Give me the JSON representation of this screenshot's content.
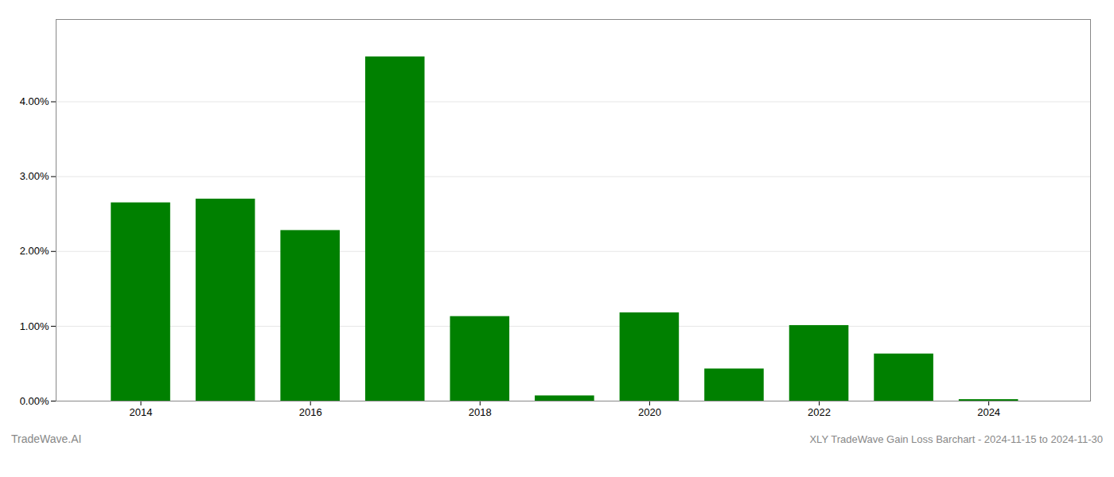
{
  "chart_data": {
    "type": "bar",
    "title": "XLY TradeWave Gain Loss Barchart - 2024-11-15 to 2024-11-30",
    "annotations": [
      "TradeWave.AI"
    ],
    "x": [
      2014,
      2015,
      2016,
      2017,
      2018,
      2019,
      2020,
      2021,
      2022,
      2023,
      2024
    ],
    "values": [
      0.0265,
      0.027,
      0.0228,
      0.046,
      0.0113,
      0.0007,
      0.0118,
      0.0043,
      0.0101,
      0.0063,
      0.0002
    ],
    "color": "#008000",
    "xlim": [
      2013.0,
      2025.2
    ],
    "xticks": [
      2014,
      2016,
      2018,
      2020,
      2022,
      2024
    ],
    "ylim": [
      0,
      0.051
    ],
    "yticks": [
      {
        "value": 0.0,
        "label": "0.00%"
      },
      {
        "value": 0.01,
        "label": "1.00%"
      },
      {
        "value": 0.02,
        "label": "2.00%"
      },
      {
        "value": 0.03,
        "label": "3.00%"
      },
      {
        "value": 0.04,
        "label": "4.00%"
      }
    ],
    "grid": true
  }
}
